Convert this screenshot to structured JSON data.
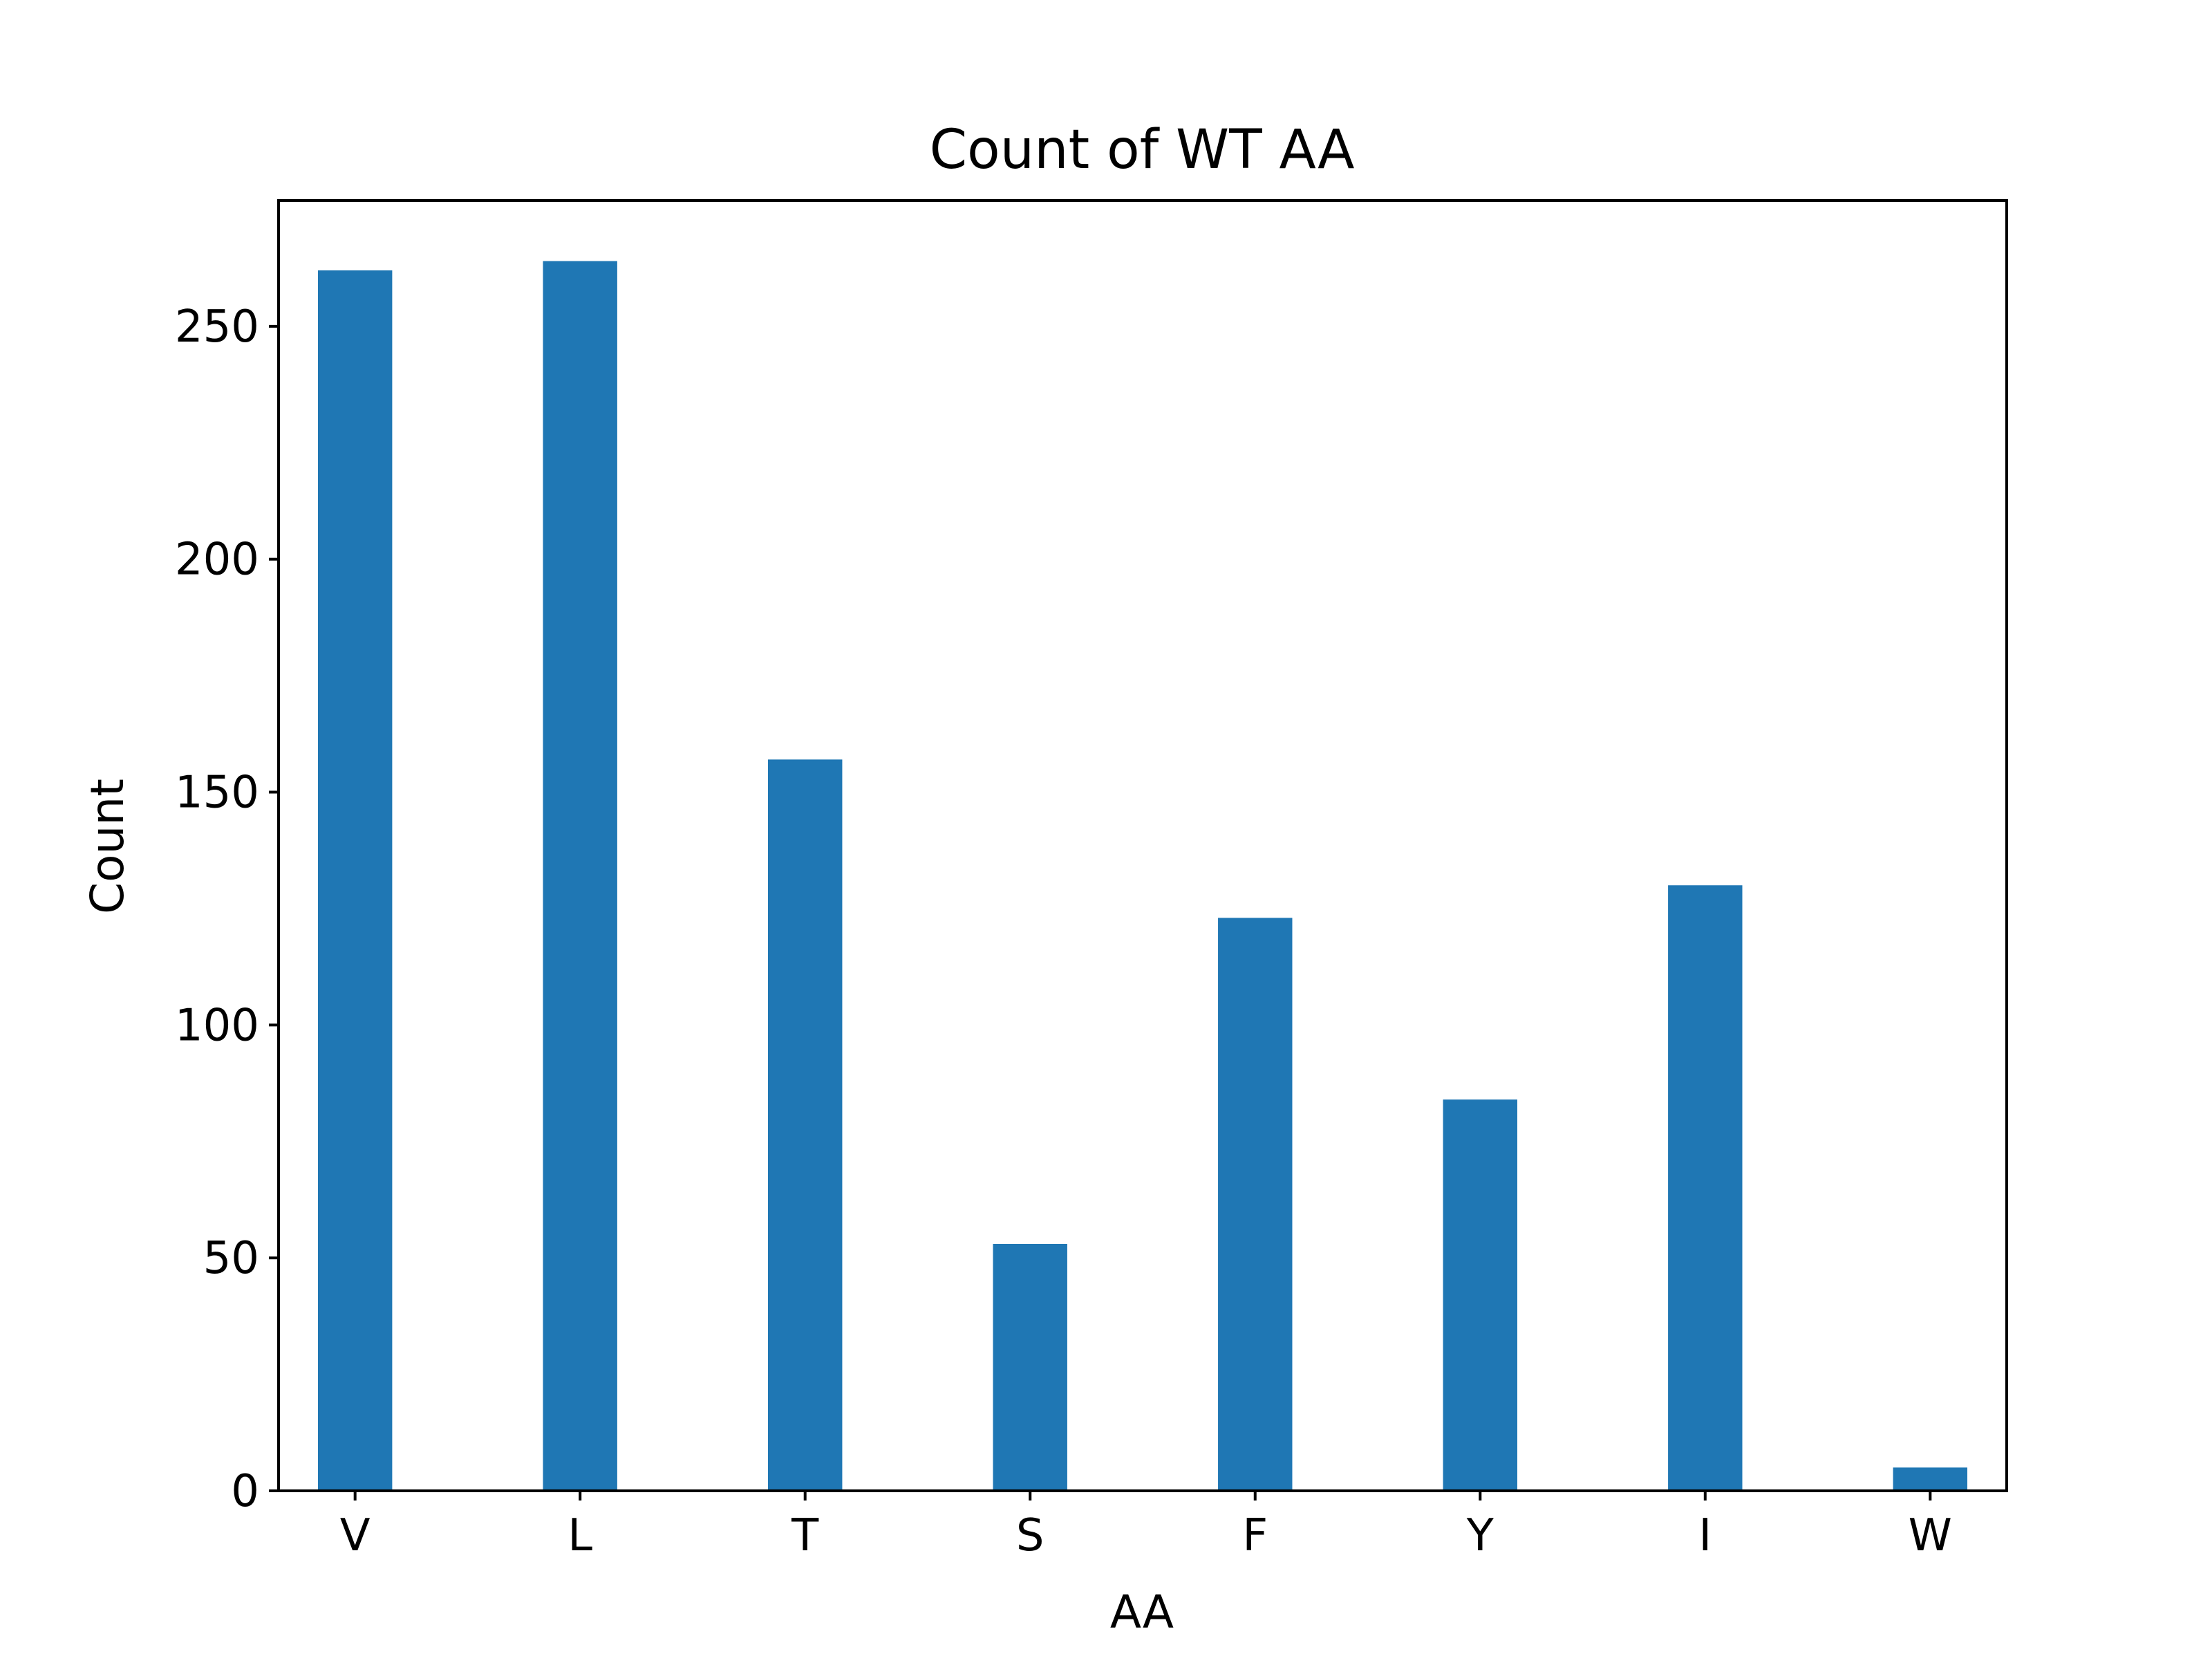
{
  "chart_data": {
    "type": "bar",
    "title": "Count of WT AA",
    "xlabel": "AA",
    "ylabel": "Count",
    "x_positions": [
      0,
      1,
      2,
      3,
      4,
      5,
      6,
      7
    ],
    "categories": [
      "V",
      "L",
      "T",
      "S",
      "F",
      "Y",
      "I",
      "W"
    ],
    "bars": [
      {
        "category": "V",
        "value": 262
      },
      {
        "category": "L",
        "value": 264
      },
      {
        "category": "T",
        "value": 157
      },
      {
        "category": "S",
        "value": 53
      },
      {
        "category": "F",
        "value": 123
      },
      {
        "category": "Y",
        "value": 84
      },
      {
        "category": "I",
        "value": 130
      },
      {
        "category": "W",
        "value": 5
      }
    ],
    "yticks": [
      "0",
      "50",
      "100",
      "150",
      "200",
      "250"
    ],
    "ylim": [
      0,
      277
    ],
    "grid": false,
    "legend": "none",
    "bar_color": "#1f77b4"
  }
}
